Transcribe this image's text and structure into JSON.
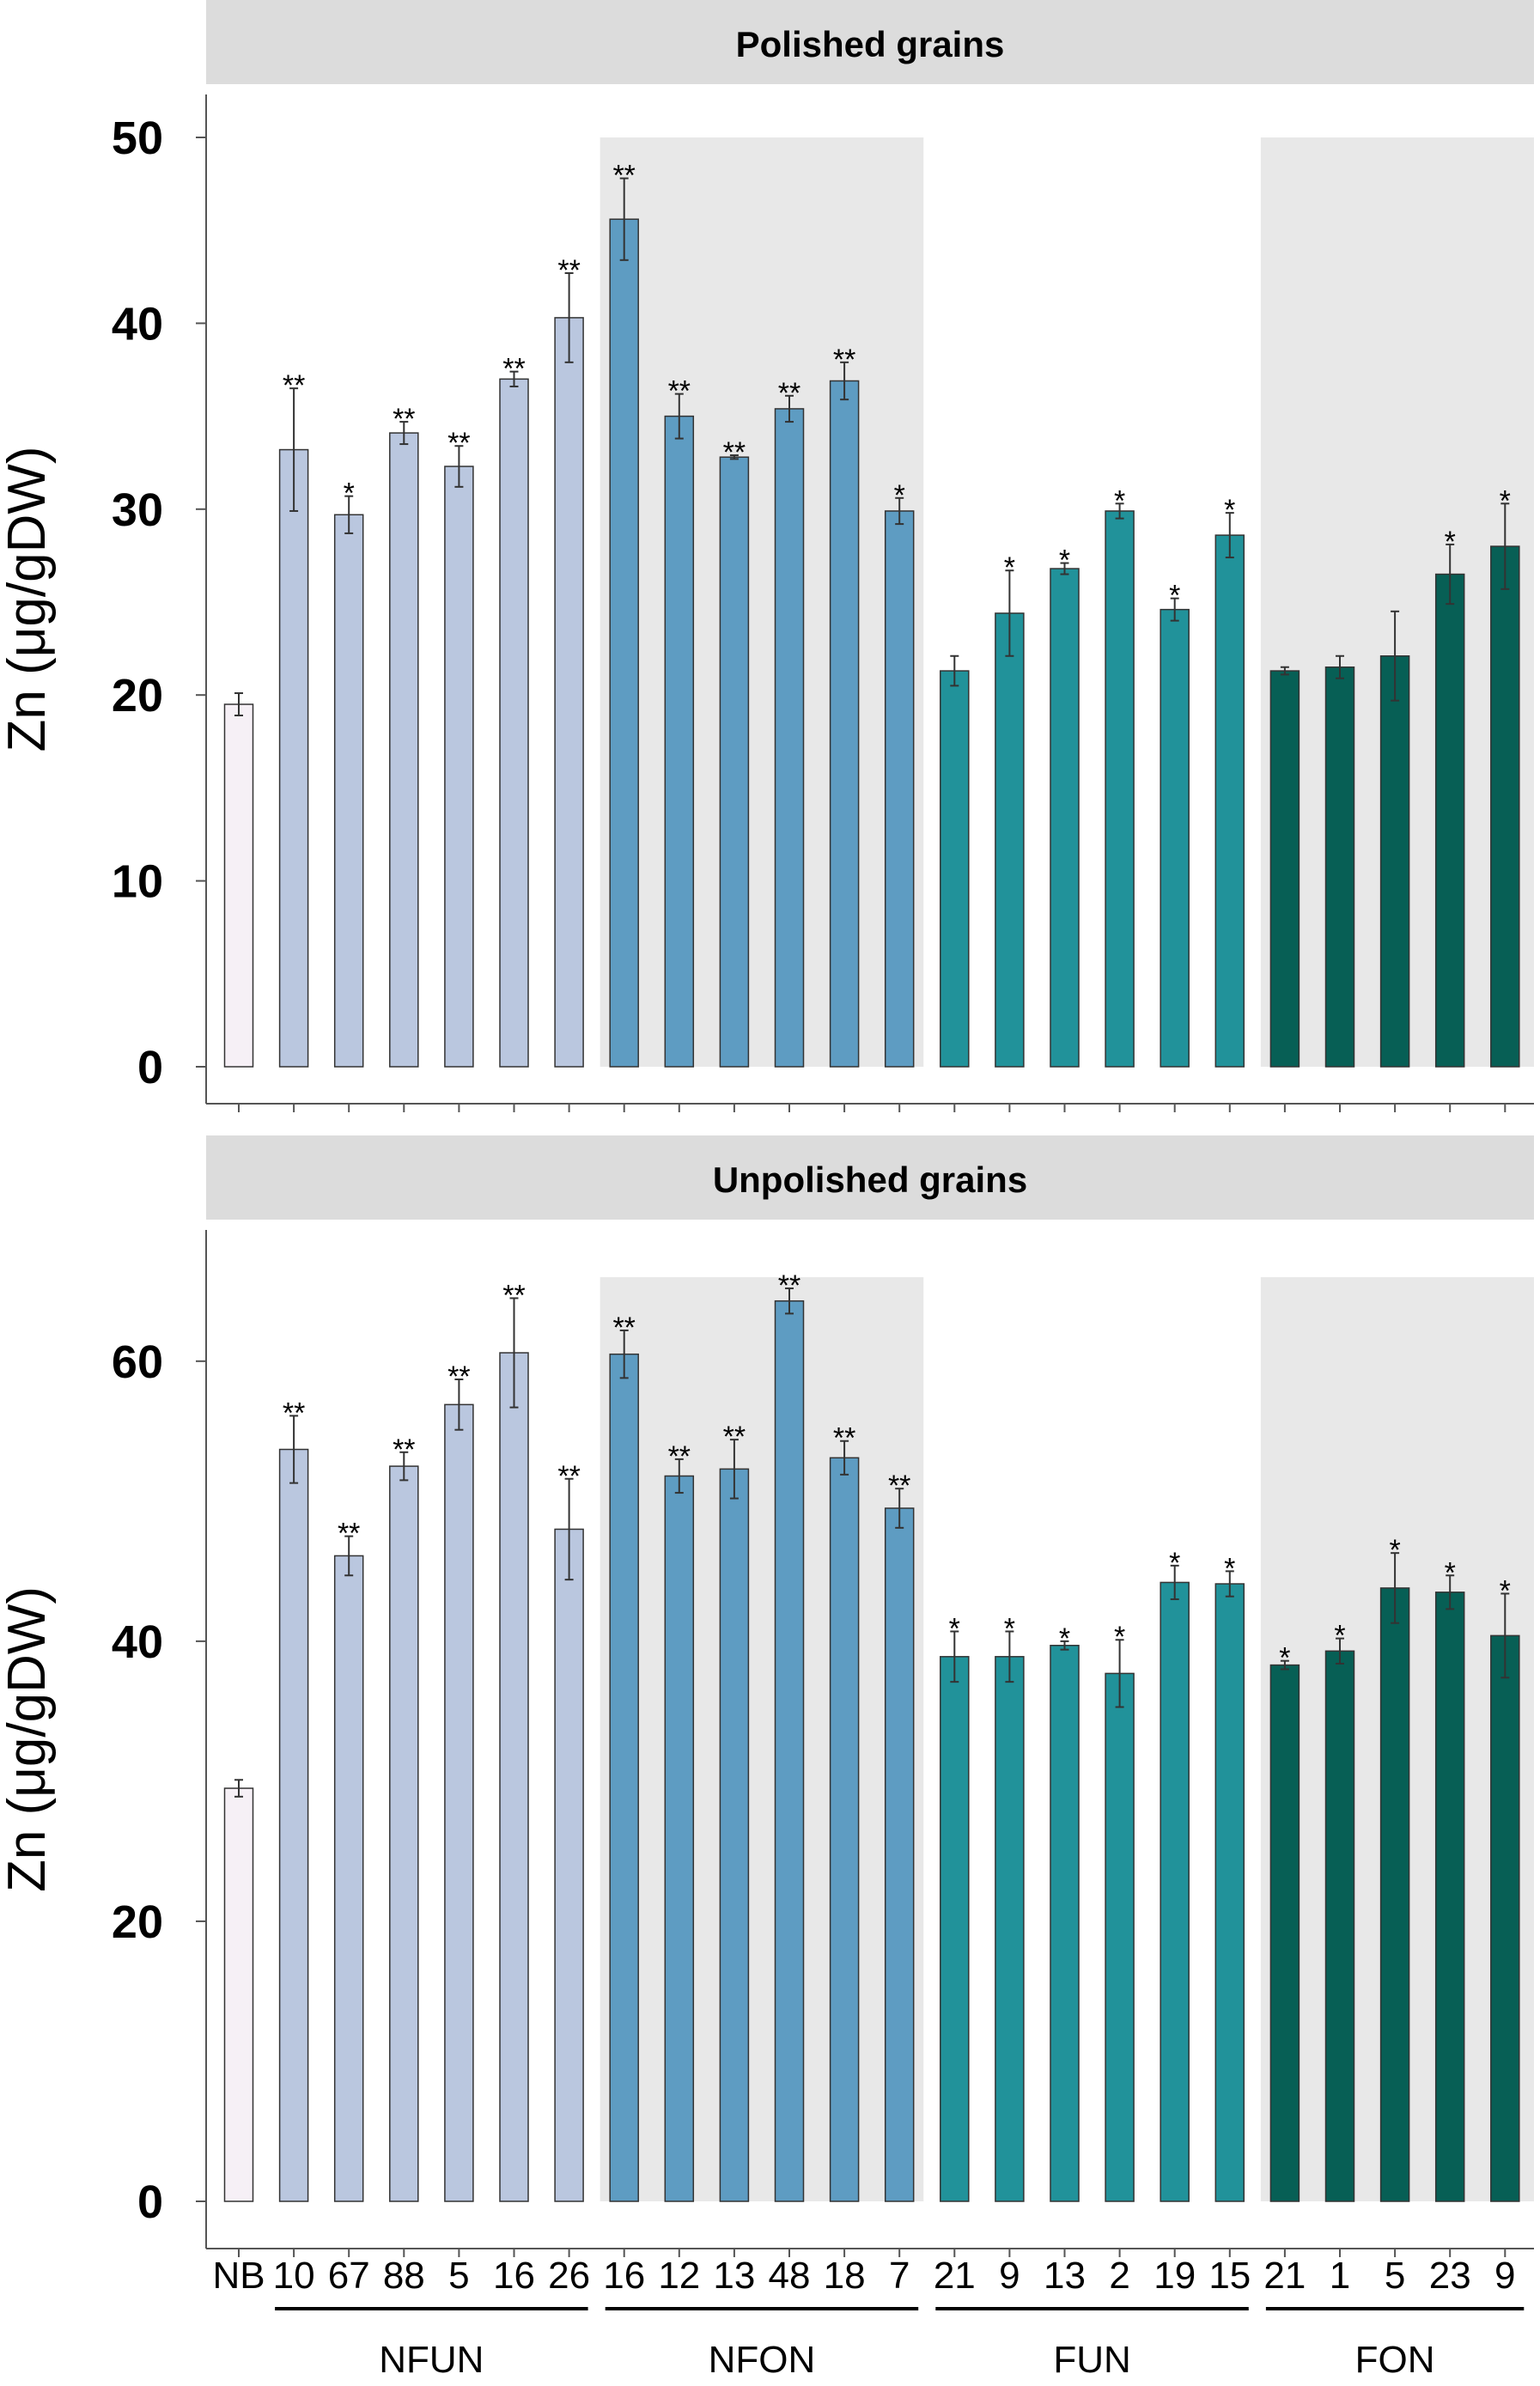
{
  "chart_data": [
    {
      "type": "bar",
      "title": "Polished grains",
      "ylabel": "Zn (μg/gDW)",
      "ylim": [
        0,
        50
      ],
      "yticks": [
        0,
        10,
        20,
        30,
        40,
        50
      ],
      "categories": [
        "NB",
        "10",
        "67",
        "88",
        "5",
        "16",
        "26",
        "16",
        "12",
        "13",
        "48",
        "18",
        "7",
        "21",
        "9",
        "13",
        "2",
        "19",
        "15",
        "21",
        "1",
        "5",
        "23",
        "9"
      ],
      "groups": [
        "NB",
        "NFUN",
        "NFUN",
        "NFUN",
        "NFUN",
        "NFUN",
        "NFUN",
        "NFON",
        "NFON",
        "NFON",
        "NFON",
        "NFON",
        "NFON",
        "FUN",
        "FUN",
        "FUN",
        "FUN",
        "FUN",
        "FUN",
        "FON",
        "FON",
        "FON",
        "FON",
        "FON"
      ],
      "values": [
        19.5,
        33.2,
        29.7,
        34.1,
        32.3,
        37.0,
        40.3,
        45.6,
        35.0,
        32.8,
        35.4,
        36.9,
        29.9,
        21.3,
        24.4,
        26.8,
        29.9,
        24.6,
        28.6,
        21.3,
        21.5,
        22.1,
        26.5,
        28.0
      ],
      "errors": [
        0.6,
        3.3,
        1.0,
        0.6,
        1.1,
        0.4,
        2.4,
        2.2,
        1.2,
        0.1,
        0.7,
        1.0,
        0.7,
        0.8,
        2.3,
        0.3,
        0.4,
        0.6,
        1.2,
        0.2,
        0.6,
        2.4,
        1.6,
        2.3
      ],
      "significance": [
        "",
        "**",
        "*",
        "**",
        "**",
        "**",
        "**",
        "**",
        "**",
        "**",
        "**",
        "**",
        "*",
        "",
        "*",
        "*",
        "*",
        "*",
        "*",
        "",
        "",
        "",
        "*",
        "*"
      ]
    },
    {
      "type": "bar",
      "title": "Unpolished grains",
      "ylabel": "Zn (μg/gDW)",
      "ylim": [
        0,
        66
      ],
      "yticks": [
        0,
        20,
        40,
        60
      ],
      "categories": [
        "NB",
        "10",
        "67",
        "88",
        "5",
        "16",
        "26",
        "16",
        "12",
        "13",
        "48",
        "18",
        "7",
        "21",
        "9",
        "13",
        "2",
        "19",
        "15",
        "21",
        "1",
        "5",
        "23",
        "9"
      ],
      "groups": [
        "NB",
        "NFUN",
        "NFUN",
        "NFUN",
        "NFUN",
        "NFUN",
        "NFUN",
        "NFON",
        "NFON",
        "NFON",
        "NFON",
        "NFON",
        "NFON",
        "FUN",
        "FUN",
        "FUN",
        "FUN",
        "FUN",
        "FUN",
        "FON",
        "FON",
        "FON",
        "FON",
        "FON"
      ],
      "values": [
        29.5,
        53.7,
        46.1,
        52.5,
        56.9,
        60.6,
        48.0,
        60.5,
        51.8,
        52.3,
        64.3,
        53.1,
        49.5,
        38.9,
        38.9,
        39.7,
        37.7,
        44.2,
        44.1,
        38.3,
        39.3,
        43.8,
        43.5,
        40.4
      ],
      "errors": [
        0.6,
        2.4,
        1.4,
        1.0,
        1.8,
        3.9,
        3.6,
        1.7,
        1.2,
        2.1,
        0.9,
        1.2,
        1.4,
        1.8,
        1.8,
        0.3,
        2.4,
        1.2,
        0.9,
        0.3,
        0.9,
        2.5,
        1.2,
        3.0
      ],
      "significance": [
        "",
        "**",
        "**",
        "**",
        "**",
        "**",
        "**",
        "**",
        "**",
        "**",
        "**",
        "**",
        "**",
        "*",
        "*",
        "*",
        "*",
        "*",
        "*",
        "*",
        "*",
        "*",
        "*",
        "*"
      ]
    }
  ],
  "group_labels": [
    "NFUN",
    "NFON",
    "FUN",
    "FON"
  ],
  "colors": {
    "NB": "#f6f0f6",
    "NFUN": "#bac7df",
    "NFON": "#5e9cc2",
    "FUN": "#21929a",
    "FON": "#075f55",
    "shade": "#e8e8e8",
    "title_band": "#dcdcdc"
  }
}
